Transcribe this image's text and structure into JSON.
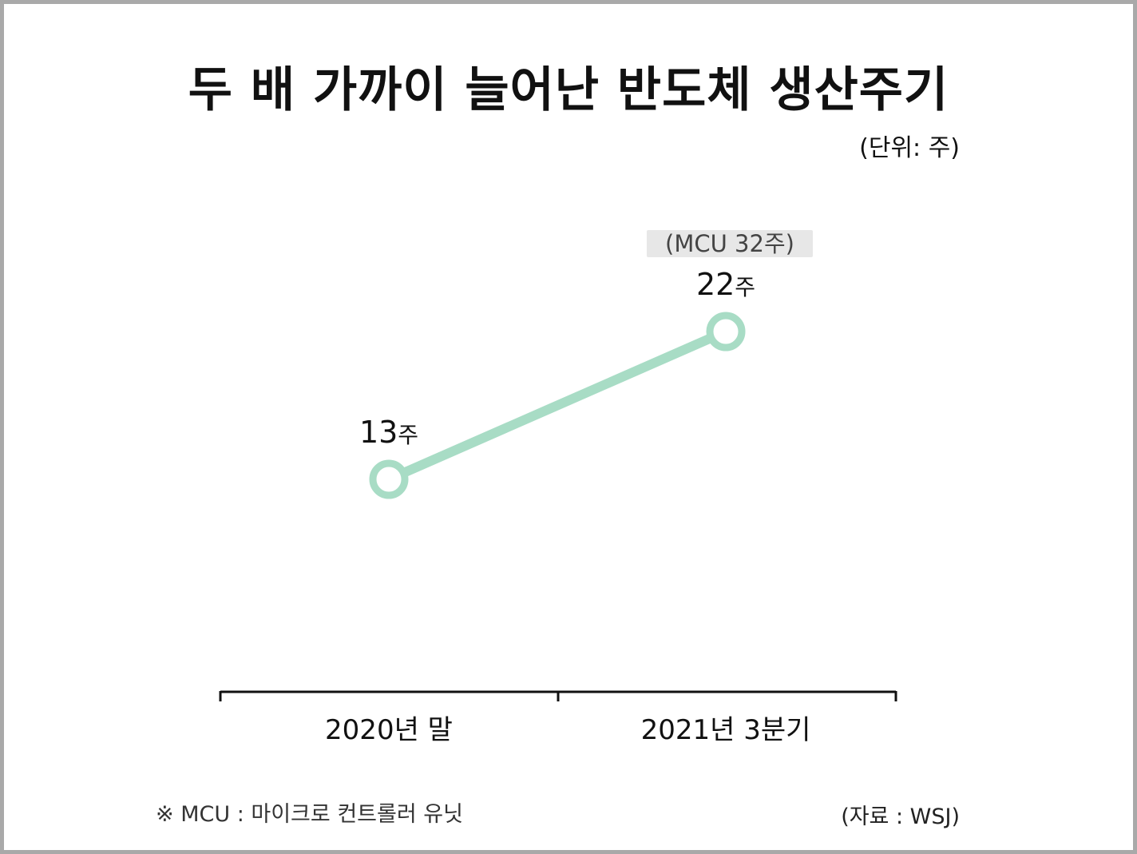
{
  "title": "두 배 가까이 늘어난 반도체 생산주기",
  "unit_label": "(단위: 주)",
  "annotation": "(MCU 32주)",
  "footnote": "※ MCU : 마이크로 컨트롤러 유닛",
  "source": "(자료 : WSJ)",
  "chart_data": {
    "type": "line",
    "title": "두 배 가까이 늘어난 반도체 생산주기",
    "categories": [
      "2020년 말",
      "2021년 3분기"
    ],
    "series": [
      {
        "values": [
          13,
          22
        ],
        "value_labels": [
          "13주",
          "22주"
        ],
        "color": "#a8dcc5"
      }
    ],
    "ylabel": "(단위: 주)",
    "annotations": [
      {
        "category": "2021년 3분기",
        "text": "(MCU 32주)"
      }
    ],
    "grid": false,
    "legend": "none"
  }
}
